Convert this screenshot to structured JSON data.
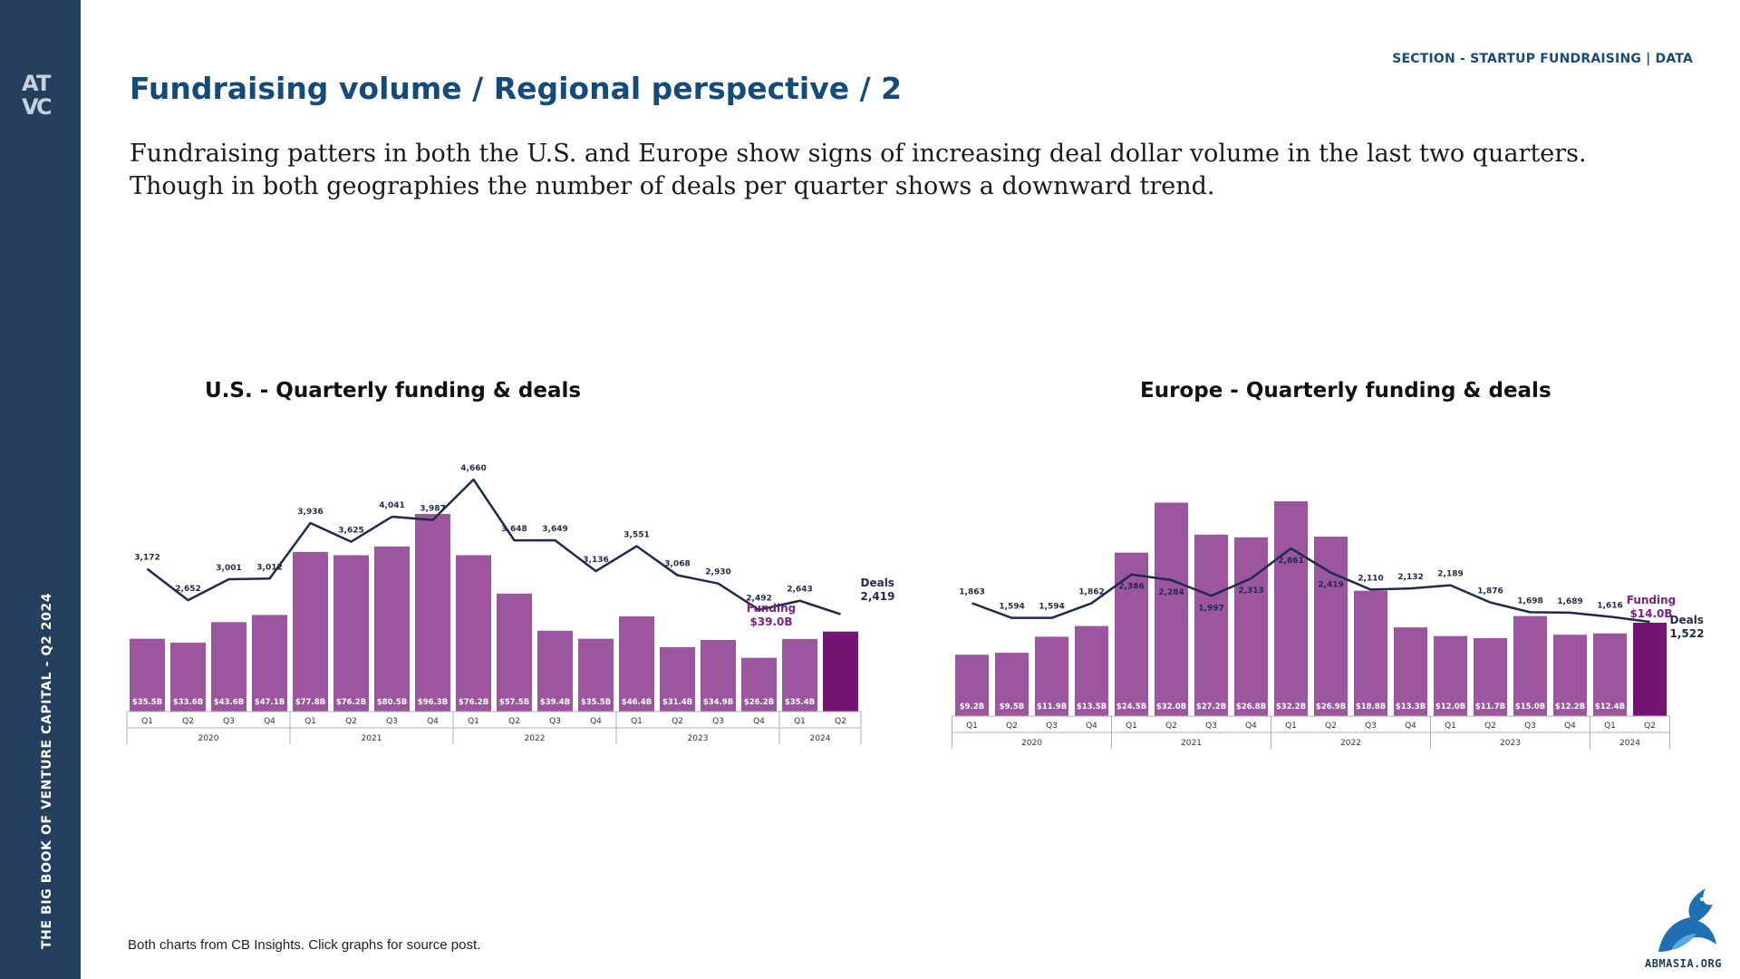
{
  "header": {
    "section_label": "SECTION - STARTUP FUNDRAISING | DATA",
    "title": "Fundraising volume / Regional perspective / 2",
    "intro": "Fundraising patters in both the U.S. and Europe show signs of increasing deal dollar volume in the last two quarters. Though in both geographies the number of deals per quarter shows a downward trend."
  },
  "sidebar": {
    "vertical_text": "THE BIG BOOK OF VENTURE CAPITAL - Q2 2024",
    "logo_text": "ATVC"
  },
  "footer": {
    "note": "Both charts from CB Insights. Click graphs for source post.",
    "brand_text": "ABMASIA.ORG"
  },
  "colors": {
    "sidebar": "#253f5e",
    "title": "#154a7c",
    "bar": "#9c559f",
    "bar_highlight": "#741574",
    "line": "#1e2b4a"
  },
  "chart_data": [
    {
      "type": "bar",
      "title": "U.S. - Quarterly funding & deals",
      "categories": [
        "Q1",
        "Q2",
        "Q3",
        "Q4",
        "Q1",
        "Q2",
        "Q3",
        "Q4",
        "Q1",
        "Q2",
        "Q3",
        "Q4",
        "Q1",
        "Q2",
        "Q3",
        "Q4",
        "Q1",
        "Q2"
      ],
      "years": [
        {
          "label": "2020",
          "quarters": 4
        },
        {
          "label": "2021",
          "quarters": 4
        },
        {
          "label": "2022",
          "quarters": 4
        },
        {
          "label": "2023",
          "quarters": 4
        },
        {
          "label": "2024",
          "quarters": 2
        }
      ],
      "series": [
        {
          "name": "Funding",
          "unit": "$B",
          "values": [
            35.5,
            33.6,
            43.6,
            47.1,
            77.8,
            76.2,
            80.5,
            96.3,
            76.2,
            57.5,
            39.4,
            35.5,
            46.4,
            31.4,
            34.9,
            26.2,
            35.4,
            39.0
          ],
          "labels": [
            "$35.5B",
            "$33.6B",
            "$43.6B",
            "$47.1B",
            "$77.8B",
            "$76.2B",
            "$80.5B",
            "$96.3B",
            "$76.2B",
            "$57.5B",
            "$39.4B",
            "$35.5B",
            "$46.4B",
            "$31.4B",
            "$34.9B",
            "$26.2B",
            "$35.4B",
            ""
          ]
        },
        {
          "name": "Deals",
          "values": [
            3172,
            2652,
            3001,
            3012,
            3936,
            3625,
            4041,
            3987,
            4660,
            3648,
            3649,
            3136,
            3551,
            3068,
            2930,
            2492,
            2643,
            2419
          ],
          "labels": [
            "3,172",
            "2,652",
            "3,001",
            "3,012",
            "3,936",
            "3,625",
            "4,041",
            "3,987",
            "4,660",
            "3,648",
            "3,649",
            "3,136",
            "3,551",
            "3,068",
            "2,930",
            "2,492",
            "2,643",
            ""
          ]
        }
      ],
      "callouts": {
        "deals_label": "Deals",
        "deals_value": "2,419",
        "funding_label": "Funding",
        "funding_value": "$39.0B"
      },
      "legend": "none"
    },
    {
      "type": "bar",
      "title": "Europe - Quarterly funding & deals",
      "categories": [
        "Q1",
        "Q2",
        "Q3",
        "Q4",
        "Q1",
        "Q2",
        "Q3",
        "Q4",
        "Q1",
        "Q2",
        "Q3",
        "Q4",
        "Q1",
        "Q2",
        "Q3",
        "Q4",
        "Q1",
        "Q2"
      ],
      "years": [
        {
          "label": "2020",
          "quarters": 4
        },
        {
          "label": "2021",
          "quarters": 4
        },
        {
          "label": "2022",
          "quarters": 4
        },
        {
          "label": "2023",
          "quarters": 4
        },
        {
          "label": "2024",
          "quarters": 2
        }
      ],
      "series": [
        {
          "name": "Funding",
          "unit": "$B",
          "values": [
            9.2,
            9.5,
            11.9,
            13.5,
            24.5,
            32.0,
            27.2,
            26.8,
            32.2,
            26.9,
            18.8,
            13.3,
            12.0,
            11.7,
            15.0,
            12.2,
            12.4,
            14.0
          ],
          "labels": [
            "$9.2B",
            "$9.5B",
            "$11.9B",
            "$13.5B",
            "$24.5B",
            "$32.0B",
            "$27.2B",
            "$26.8B",
            "$32.2B",
            "$26.9B",
            "$18.8B",
            "$13.3B",
            "$12.0B",
            "$11.7B",
            "$15.0B",
            "$12.2B",
            "$12.4B",
            ""
          ]
        },
        {
          "name": "Deals",
          "values": [
            1863,
            1594,
            1594,
            1862,
            2386,
            2284,
            1997,
            2313,
            2861,
            2419,
            2110,
            2132,
            2189,
            1876,
            1698,
            1689,
            1616,
            1522
          ],
          "labels": [
            "1,863",
            "1,594",
            "1,594",
            "1,862",
            "2,386",
            "2,284",
            "1,997",
            "2,313",
            "2,861",
            "2,419",
            "2,110",
            "2,132",
            "2,189",
            "1,876",
            "1,698",
            "1,689",
            "1,616",
            ""
          ]
        }
      ],
      "callouts": {
        "deals_label": "Deals",
        "deals_value": "1,522",
        "funding_label": "Funding",
        "funding_value": "$14.0B"
      },
      "legend": "none"
    }
  ]
}
